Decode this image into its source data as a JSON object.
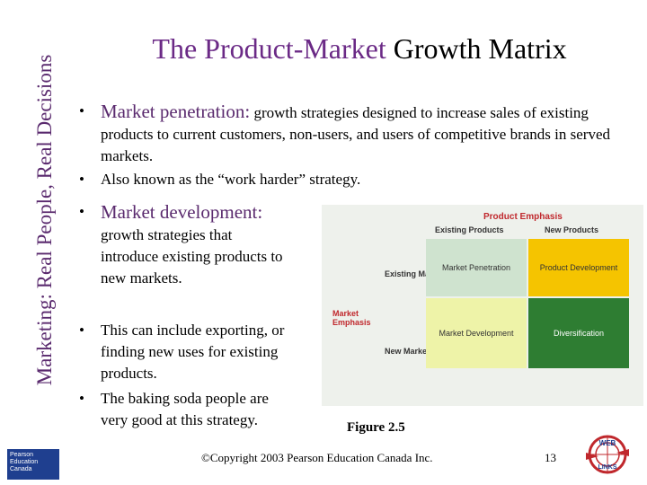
{
  "sidebar": {
    "text_part1": "Marketing: ",
    "text_part2": "Real People, Real Decisions",
    "logo_line1": "Pearson",
    "logo_line2": "Education",
    "logo_line3": "Canada"
  },
  "title": {
    "part1": "The Product-Market",
    "part2": " Growth Matrix"
  },
  "bullets": {
    "b1_head": "Market penetration:",
    "b1_text": " growth strategies designed to increase sales of existing products to current customers, non-users, and users of competitive brands in served markets.",
    "b2": "Also known as the “work harder” strategy.",
    "b3_head": "Market development:",
    "b3_text": " growth strategies that introduce existing products to new markets.",
    "b4": "This can include exporting, or finding new uses for existing products.",
    "b5": "The baking soda people are very good at this strategy."
  },
  "matrix": {
    "product_emphasis": "Product Emphasis",
    "col1": "Existing Products",
    "col2": "New Products",
    "row1": "Existing Markets",
    "row2": "New Markets",
    "market_emphasis": "Market Emphasis",
    "cell_tl": "Market Penetration",
    "cell_tr": "Product Development",
    "cell_bl": "Market Development",
    "cell_br": "Diversification",
    "colors": {
      "tl": "#cfe3cf",
      "tr": "#f5c400",
      "bl": "#eef3a8",
      "br": "#2e7d32"
    }
  },
  "footer": {
    "figure": "Figure 2.5",
    "copyright": "©Copyright 2003 Pearson Education Canada Inc.",
    "page": "13",
    "web_top": "WEB",
    "web_bottom": "LINKS"
  }
}
